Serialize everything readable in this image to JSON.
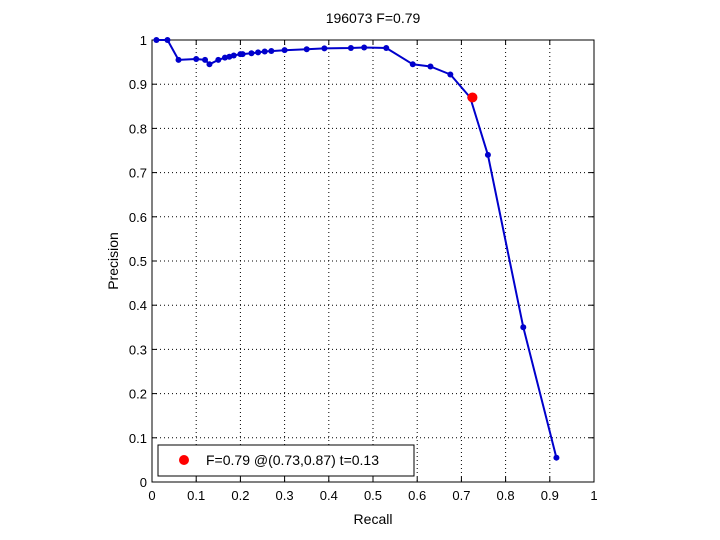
{
  "chart_data": {
    "type": "line",
    "title": "196073 F=0.79",
    "xlabel": "Recall",
    "ylabel": "Precision",
    "xlim": [
      0,
      1
    ],
    "ylim": [
      0,
      1
    ],
    "xticks": [
      0,
      0.1,
      0.2,
      0.3,
      0.4,
      0.5,
      0.6,
      0.7,
      0.8,
      0.9,
      1
    ],
    "yticks": [
      0,
      0.1,
      0.2,
      0.3,
      0.4,
      0.5,
      0.6,
      0.7,
      0.8,
      0.9,
      1
    ],
    "xtick_labels": [
      "0",
      "0.1",
      "0.2",
      "0.3",
      "0.4",
      "0.5",
      "0.6",
      "0.7",
      "0.8",
      "0.9",
      "1"
    ],
    "ytick_labels": [
      "0",
      "0.1",
      "0.2",
      "0.3",
      "0.4",
      "0.5",
      "0.6",
      "0.7",
      "0.8",
      "0.9",
      "1"
    ],
    "grid": true,
    "legend_position": "bottom-left",
    "series": [
      {
        "color": "#0000cc",
        "x": [
          0.01,
          0.035,
          0.06,
          0.1,
          0.12,
          0.13,
          0.15,
          0.165,
          0.175,
          0.185,
          0.2,
          0.205,
          0.225,
          0.24,
          0.255,
          0.27,
          0.3,
          0.35,
          0.39,
          0.45,
          0.48,
          0.53,
          0.59,
          0.63,
          0.675,
          0.72,
          0.76,
          0.84,
          0.915
        ],
        "y": [
          1.0,
          1.0,
          0.955,
          0.957,
          0.955,
          0.945,
          0.955,
          0.96,
          0.962,
          0.965,
          0.968,
          0.968,
          0.97,
          0.972,
          0.974,
          0.975,
          0.977,
          0.979,
          0.981,
          0.982,
          0.983,
          0.982,
          0.945,
          0.94,
          0.922,
          0.87,
          0.74,
          0.35,
          0.055
        ]
      }
    ],
    "best_point": {
      "x": 0.725,
      "y": 0.87,
      "color": "#ff0000"
    },
    "legend": {
      "label": "F=0.79 @(0.73,0.87) t=0.13",
      "marker_color": "#ff0000"
    }
  }
}
